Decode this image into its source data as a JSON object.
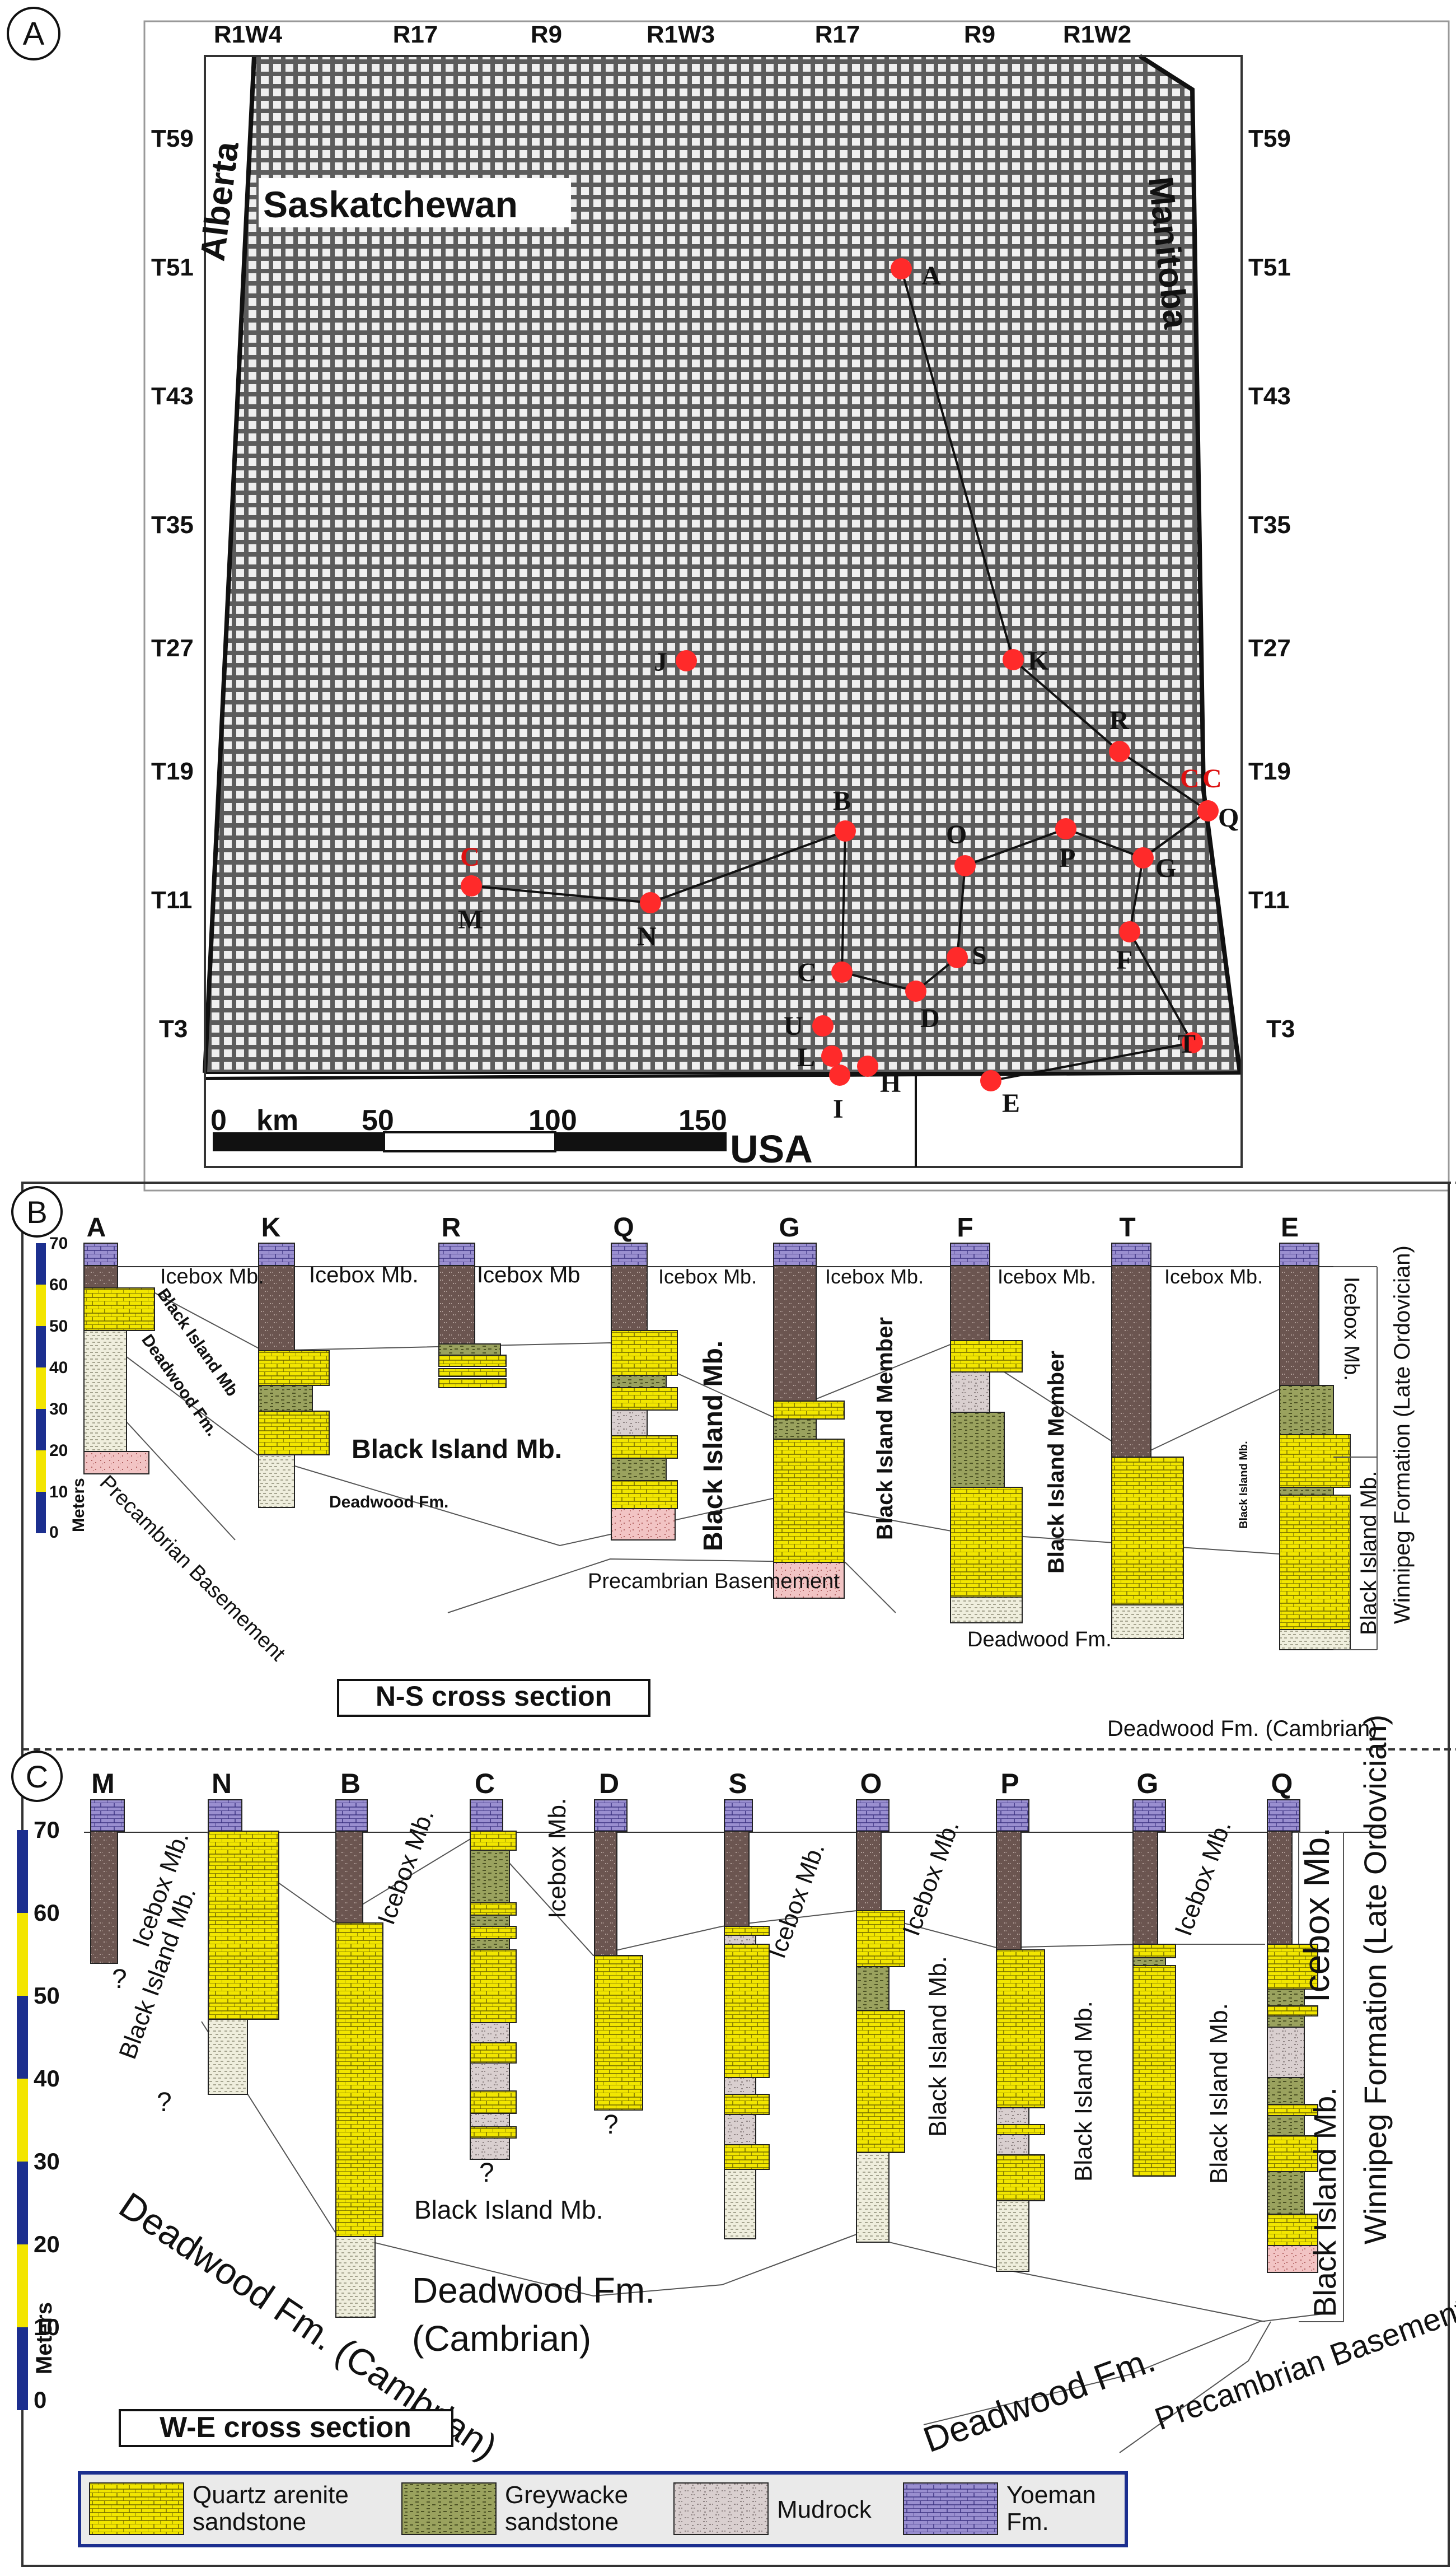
{
  "panels": {
    "a": {
      "letter": "A"
    },
    "b": {
      "letter": "B"
    },
    "c": {
      "letter": "C"
    }
  },
  "map": {
    "ranges": [
      "R1W4",
      "R17",
      "R9",
      "R1W3",
      "R17",
      "R9",
      "R1W2"
    ],
    "townships": [
      "T59",
      "T51",
      "T43",
      "T35",
      "T27",
      "T19",
      "T11",
      "T3"
    ],
    "provinces": {
      "alberta": "Alberta",
      "saskatchewan": "Saskatchewan",
      "manitoba": "Manitoba",
      "usa": "USA"
    },
    "scale": {
      "zero": "0",
      "unit": "km",
      "fifty": "50",
      "hundred": "100",
      "one_fifty": "150"
    },
    "wells": [
      "A",
      "K",
      "R",
      "Q",
      "G",
      "F",
      "T",
      "E",
      "J",
      "B",
      "O",
      "P",
      "C",
      "S",
      "D",
      "U",
      "L",
      "H",
      "I",
      "M",
      "N"
    ],
    "red_markers": [
      "C",
      "C",
      "C"
    ],
    "line_color": "#111111",
    "well_color": "#ff2a2a"
  },
  "ns_section": {
    "title": "N-S cross section",
    "axis_unit": "Meters",
    "ticks": [
      "70",
      "60",
      "50",
      "40",
      "30",
      "20",
      "10",
      "0"
    ],
    "wells": [
      "A",
      "K",
      "R",
      "Q",
      "G",
      "F",
      "T",
      "E"
    ],
    "labels": {
      "icebox_a": "Icebox Mb.",
      "icebox_k": "Icebox Mb.",
      "icebox_r": "Icebox Mb",
      "icebox_q": "Icebox Mb.",
      "icebox_g": "Icebox Mb.",
      "icebox_f": "Icebox Mb.",
      "icebox_t": "Icebox Mb.",
      "icebox_e": "Icebox Mb.",
      "black_island_a": "Black Island Mb",
      "deadwood_a": "Deadwood Fm.",
      "precambrian_a": "Precambrian Basemement",
      "black_island_k": "Black Island Mb.",
      "deadwood_k": "Deadwood Fm.",
      "precambrian_q": "Precambrian Basemement",
      "black_island_q": "Black Island Mb.",
      "black_island_member_g": "Black Island Member",
      "black_island_member_f": "Black Island Member",
      "deadwood_f": "Deadwood Fm.",
      "black_island_t": "Black Island Mb.",
      "black_island_e": "Black Island Mb.",
      "winnipeg": "Winnipeg Formation (Late Ordovician)",
      "deadwood_cambrian": "Deadwood Fm. (Cambrian)"
    }
  },
  "we_section": {
    "title": "W-E cross section",
    "axis_unit": "Meters",
    "ticks": [
      "70",
      "60",
      "50",
      "40",
      "30",
      "20",
      "10",
      "0"
    ],
    "wells": [
      "M",
      "N",
      "B",
      "C",
      "D",
      "S",
      "O",
      "P",
      "G",
      "Q"
    ],
    "labels": {
      "icebox_mn": "Icebox Mb.",
      "black_island_mn": "Black Island Mb.",
      "question": "?",
      "icebox_b": "Icebox Mb.",
      "icebox_d": "Icebox Mb.",
      "icebox_s": "Icebox Mb.",
      "icebox_o": "Icebox Mb.",
      "icebox_g": "Icebox Mb.",
      "icebox_q": "Icebox Mb.",
      "black_island_c": "Black Island Mb.",
      "black_island_p": "Black Island Mb.",
      "black_island_g": "Black Island Mb.",
      "black_island_g2": "Black Island Mb.",
      "black_island_q": "Black Island Mb.",
      "deadwood_west": "Deadwood Fm. (Cambrian)",
      "deadwood_mid_1": "Deadwood Fm.",
      "deadwood_mid_2": "(Cambrian)",
      "deadwood_east": "Deadwood Fm.",
      "precambrian": "Precambrian Basement",
      "winnipeg": "Winnipeg Formation (Late Ordovician)"
    }
  },
  "legend": {
    "items": [
      {
        "label": "Quartz arenite sandstone",
        "pattern": "quartz"
      },
      {
        "label": "Greywacke sandstone",
        "pattern": "grey"
      },
      {
        "label": "Mudrock",
        "pattern": "mud"
      },
      {
        "label": "Yoeman Fm.",
        "pattern": "yoeman"
      }
    ]
  },
  "colors": {
    "quartz": "#f2e600",
    "greywacke": "#9aa25e",
    "mudrock": "#d9cfcf",
    "icebox": "#6b5550",
    "yoeman": "#9a8fd0",
    "precambrian": "#f2c4c4",
    "deadwood": "#efeedd",
    "scale_blue": "#1c2f8f",
    "scale_yellow": "#f3e500"
  }
}
